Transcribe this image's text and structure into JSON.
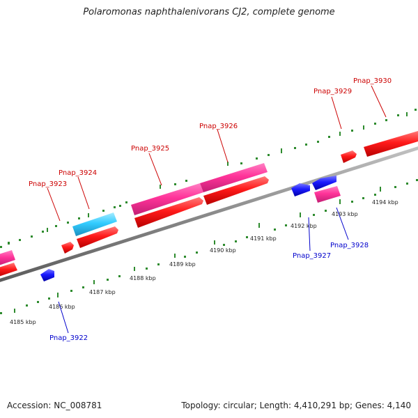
{
  "title": "Polaromonas naphthalenivorans CJ2, complete genome",
  "footer": {
    "accession": "Accession: NC_008781",
    "topology": "Topology: circular; Length: 4,410,291 bp; Genes: 4,140"
  },
  "colors": {
    "background": "#ffffff",
    "backbone": "#808080",
    "tick": "#2e8b2e",
    "forward_label": "#cc0000",
    "reverse_label": "#0000cc",
    "gene_red": "#ff1a1a",
    "gene_pink": "#ff3399",
    "gene_cyan": "#33ccff",
    "gene_blue": "#1a1aff"
  },
  "ruler_labels": [
    "4185 kbp",
    "4186 kbp",
    "4187 kbp",
    "4188 kbp",
    "4189 kbp",
    "4190 kbp",
    "4191 kbp",
    "4192 kbp",
    "4193 kbp",
    "4194 kbp"
  ],
  "gene_labels": {
    "forward": [
      "Pnap_3923",
      "Pnap_3924",
      "Pnap_3925",
      "Pnap_3926",
      "Pnap_3929",
      "Pnap_3930"
    ],
    "reverse": [
      "Pnap_3922",
      "Pnap_3927",
      "Pnap_3928"
    ]
  }
}
